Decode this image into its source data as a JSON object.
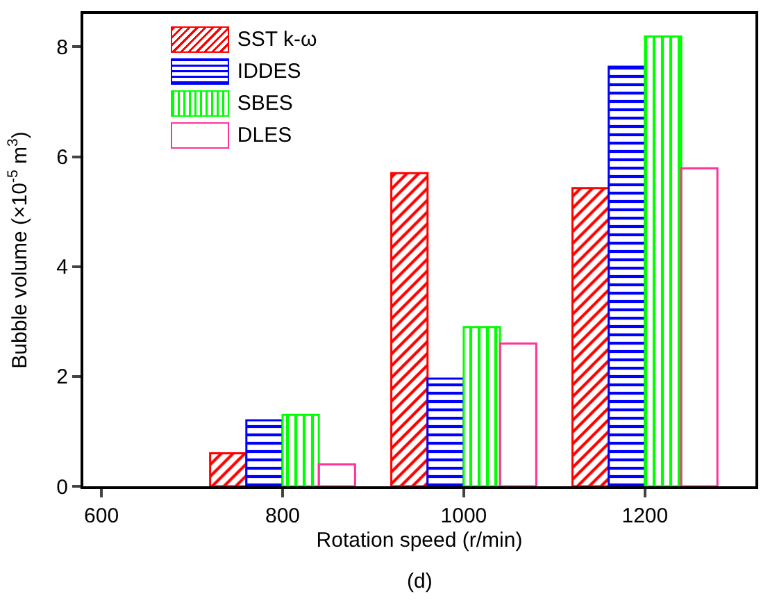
{
  "chart_data": {
    "type": "bar",
    "xlabel": "Rotation speed (r/min)",
    "ylabel": "Bubble volume (×10$^{-5}$ m$^{3}$)",
    "annotations": [
      "(d)"
    ],
    "x": [
      800,
      1000,
      1200
    ],
    "series": [
      {
        "name": "SST k-ω",
        "color": "#ff0000",
        "values": [
          0.6,
          5.7,
          5.43
        ]
      },
      {
        "name": "IDDES",
        "color": "#0000ff",
        "values": [
          1.2,
          1.96,
          7.64
        ]
      },
      {
        "name": "SBES",
        "color": "#00ff00",
        "values": [
          1.3,
          2.9,
          8.19
        ]
      },
      {
        "name": "DLES",
        "color": "#ff3399",
        "values": [
          0.4,
          2.6,
          5.79
        ]
      }
    ],
    "xlim": [
      580,
      1322
    ],
    "xticks": [
      600,
      800,
      1000,
      1200
    ],
    "ylim": [
      0,
      8.6
    ],
    "yticks": [
      0,
      2,
      4,
      6,
      8
    ],
    "grid": false,
    "legend": "top left"
  }
}
